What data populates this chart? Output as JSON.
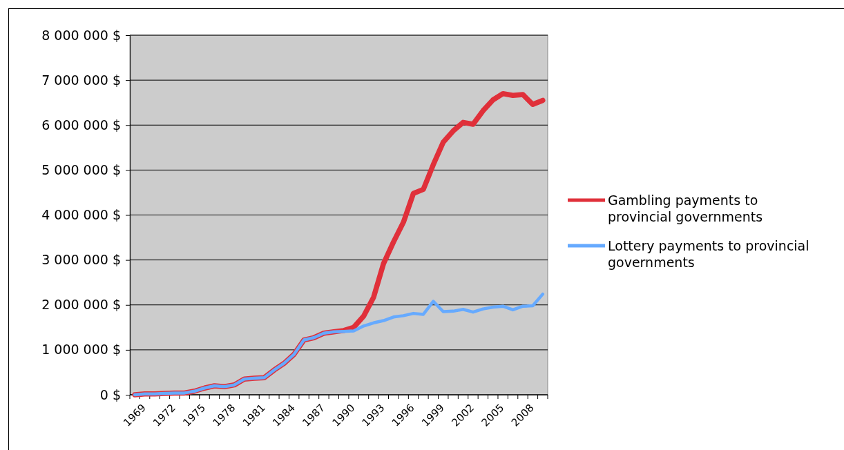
{
  "chart_data": {
    "type": "line",
    "categories": [
      "1969",
      null,
      null,
      "1972",
      null,
      null,
      "1975",
      null,
      null,
      "1978",
      null,
      null,
      "1981",
      null,
      null,
      "1984",
      null,
      null,
      "1987",
      null,
      null,
      "1990",
      null,
      null,
      "1993",
      null,
      null,
      "1996",
      null,
      null,
      "1999",
      null,
      null,
      "2002",
      null,
      null,
      "2005",
      null,
      null,
      "2008",
      null,
      null
    ],
    "series": [
      {
        "name": "Gambling payments to provincial governments",
        "color": "#e0303a",
        "values": [
          0,
          20000,
          20000,
          30000,
          40000,
          40000,
          80000,
          150000,
          200000,
          180000,
          220000,
          350000,
          370000,
          380000,
          550000,
          700000,
          900000,
          1220000,
          1270000,
          1370000,
          1400000,
          1430000,
          1500000,
          1750000,
          2170000,
          2920000,
          3400000,
          3840000,
          4480000,
          4570000,
          5120000,
          5620000,
          5870000,
          6060000,
          6020000,
          6320000,
          6560000,
          6700000,
          6660000,
          6680000,
          6460000,
          6550000
        ]
      },
      {
        "name": "Lottery payments to provincial governments",
        "color": "#66aaff",
        "values": [
          0,
          20000,
          20000,
          30000,
          40000,
          40000,
          80000,
          150000,
          200000,
          180000,
          220000,
          350000,
          370000,
          380000,
          550000,
          700000,
          900000,
          1220000,
          1270000,
          1370000,
          1400000,
          1410000,
          1420000,
          1530000,
          1600000,
          1650000,
          1730000,
          1760000,
          1810000,
          1790000,
          2080000,
          1850000,
          1860000,
          1900000,
          1840000,
          1910000,
          1950000,
          1970000,
          1890000,
          1970000,
          1980000,
          2240000
        ]
      }
    ],
    "ylim": [
      0,
      8000000
    ],
    "yticks": [
      {
        "value": 0,
        "label": "0 $"
      },
      {
        "value": 1000000,
        "label": "1 000 000 $"
      },
      {
        "value": 2000000,
        "label": "2 000 000 $"
      },
      {
        "value": 3000000,
        "label": "3 000 000 $"
      },
      {
        "value": 4000000,
        "label": "4 000 000 $"
      },
      {
        "value": 5000000,
        "label": "5 000 000 $"
      },
      {
        "value": 6000000,
        "label": "6 000 000 $"
      },
      {
        "value": 7000000,
        "label": "7 000 000 $"
      },
      {
        "value": 8000000,
        "label": "8 000 000 $"
      }
    ],
    "grid": "y",
    "legend": "right",
    "marker": "none",
    "line_style": "solid"
  }
}
